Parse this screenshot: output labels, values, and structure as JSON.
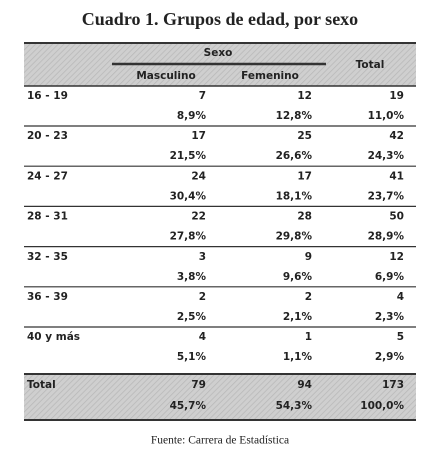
{
  "title": "Cuadro 1. Grupos de edad, por sexo",
  "table": {
    "header": {
      "sexo": "Sexo",
      "masculino": "Masculino",
      "femenino": "Femenino",
      "total": "Total"
    },
    "rows": [
      {
        "label": "16 - 19",
        "counts": [
          "7",
          "12",
          "19"
        ],
        "percents": [
          "8,9%",
          "12,8%",
          "11,0%"
        ]
      },
      {
        "label": "20 - 23",
        "counts": [
          "17",
          "25",
          "42"
        ],
        "percents": [
          "21,5%",
          "26,6%",
          "24,3%"
        ]
      },
      {
        "label": "24 - 27",
        "counts": [
          "24",
          "17",
          "41"
        ],
        "percents": [
          "30,4%",
          "18,1%",
          "23,7%"
        ]
      },
      {
        "label": "28 - 31",
        "counts": [
          "22",
          "28",
          "50"
        ],
        "percents": [
          "27,8%",
          "29,8%",
          "28,9%"
        ]
      },
      {
        "label": "32 - 35",
        "counts": [
          "3",
          "9",
          "12"
        ],
        "percents": [
          "3,8%",
          "9,6%",
          "6,9%"
        ]
      },
      {
        "label": "36 - 39",
        "counts": [
          "2",
          "2",
          "4"
        ],
        "percents": [
          "2,5%",
          "2,1%",
          "2,3%"
        ]
      },
      {
        "label": "40 y más",
        "counts": [
          "4",
          "1",
          "5"
        ],
        "percents": [
          "5,1%",
          "1,1%",
          "2,9%"
        ]
      }
    ],
    "total": {
      "label": "Total",
      "counts": [
        "79",
        "94",
        "173"
      ],
      "percents": [
        "45,7%",
        "54,3%",
        "100,0%"
      ]
    }
  },
  "source": "Fuente: Carrera de Estadística"
}
